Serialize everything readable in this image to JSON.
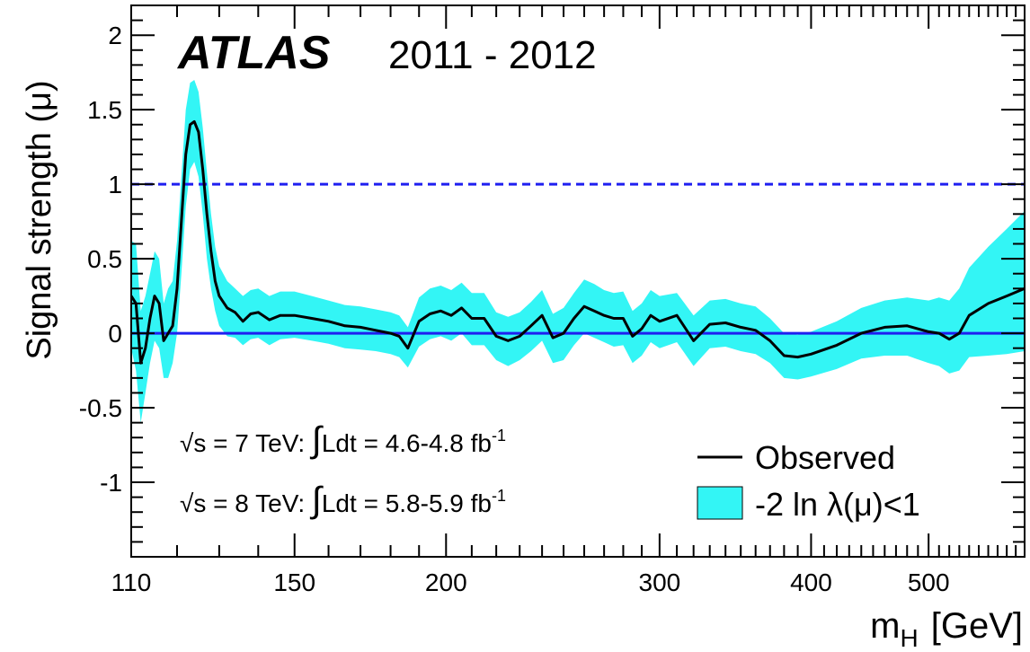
{
  "chart_data": {
    "type": "line",
    "title": "",
    "experiment_label": "ATLAS",
    "years_label": "2011 - 2012",
    "xlabel_main": "m",
    "xlabel_sub": "H",
    "xlabel_unit": "[GeV]",
    "ylabel": "Signal strength (μ)",
    "x_scale": "log",
    "xlim": [
      110,
      600
    ],
    "ylim": [
      -1.5,
      2.2
    ],
    "x_ticks": [
      110,
      150,
      200,
      300,
      400,
      500
    ],
    "y_ticks": [
      -1,
      -0.5,
      0,
      0.5,
      1,
      1.5,
      2
    ],
    "reference_lines": [
      {
        "y": 1,
        "style": "dashed",
        "color": "#1f1ff0"
      },
      {
        "y": 0,
        "style": "solid",
        "color": "#1f1ff0"
      }
    ],
    "annotations": [
      {
        "prefix": "√s = 7 TeV: ",
        "integral": "∫",
        "body": "Ldt = 4.6-4.8 fb",
        "sup": "-1"
      },
      {
        "prefix": "√s = 8 TeV: ",
        "integral": "∫",
        "body": "Ldt = 5.8-5.9 fb",
        "sup": "-1"
      }
    ],
    "legend": {
      "position": "bottom-right",
      "observed_label": "Observed",
      "band_label": "-2 ln λ(μ)<1"
    },
    "colors": {
      "observed": "#000000",
      "band": "#33f5f5",
      "reference": "#1f1ff0"
    },
    "series": [
      {
        "name": "Observed",
        "x": [
          110,
          111,
          112,
          113,
          114,
          115,
          116,
          117,
          118,
          119,
          120,
          121,
          122,
          123,
          124,
          125,
          126,
          127,
          128,
          129,
          130,
          132,
          134,
          136,
          138,
          140,
          143,
          146,
          150,
          155,
          160,
          165,
          170,
          175,
          180,
          183,
          186,
          190,
          194,
          198,
          202,
          206,
          210,
          215,
          220,
          225,
          230,
          235,
          240,
          245,
          250,
          255,
          260,
          265,
          270,
          275,
          280,
          285,
          290,
          295,
          300,
          310,
          320,
          330,
          340,
          350,
          360,
          370,
          380,
          390,
          400,
          420,
          440,
          460,
          480,
          500,
          510,
          520,
          530,
          540,
          560,
          580,
          600
        ],
        "y": [
          0.25,
          0.2,
          -0.2,
          -0.1,
          0.1,
          0.25,
          0.2,
          -0.05,
          0.0,
          0.05,
          0.3,
          0.75,
          1.2,
          1.4,
          1.42,
          1.35,
          1.1,
          0.8,
          0.55,
          0.35,
          0.25,
          0.17,
          0.14,
          0.08,
          0.13,
          0.14,
          0.09,
          0.12,
          0.12,
          0.1,
          0.08,
          0.05,
          0.04,
          0.02,
          0.0,
          -0.02,
          -0.1,
          0.08,
          0.13,
          0.15,
          0.12,
          0.17,
          0.1,
          0.1,
          -0.02,
          -0.05,
          -0.02,
          0.05,
          0.12,
          -0.03,
          0.0,
          0.1,
          0.18,
          0.15,
          0.12,
          0.1,
          0.1,
          -0.02,
          0.03,
          0.12,
          0.08,
          0.12,
          -0.05,
          0.06,
          0.07,
          0.04,
          0.02,
          -0.05,
          -0.15,
          -0.16,
          -0.14,
          -0.08,
          0.0,
          0.04,
          0.05,
          0.01,
          0.0,
          -0.04,
          0.0,
          0.12,
          0.2,
          0.25,
          0.3
        ]
      },
      {
        "name": "-2 ln λ(μ)<1",
        "x": [
          110,
          111,
          112,
          113,
          114,
          115,
          116,
          117,
          118,
          119,
          120,
          121,
          122,
          123,
          124,
          125,
          126,
          127,
          128,
          129,
          130,
          132,
          134,
          136,
          138,
          140,
          143,
          146,
          150,
          155,
          160,
          165,
          170,
          175,
          180,
          183,
          186,
          190,
          194,
          198,
          202,
          206,
          210,
          215,
          220,
          225,
          230,
          235,
          240,
          245,
          250,
          255,
          260,
          265,
          270,
          275,
          280,
          285,
          290,
          295,
          300,
          310,
          320,
          330,
          340,
          350,
          360,
          370,
          380,
          390,
          400,
          420,
          440,
          460,
          480,
          500,
          510,
          520,
          530,
          540,
          560,
          580,
          600
        ],
        "lower": [
          -0.1,
          -0.25,
          -0.6,
          -0.4,
          -0.2,
          -0.05,
          -0.1,
          -0.3,
          -0.3,
          -0.2,
          0.0,
          0.4,
          0.85,
          1.1,
          1.15,
          1.05,
          0.8,
          0.5,
          0.3,
          0.15,
          0.05,
          -0.02,
          -0.03,
          -0.08,
          -0.04,
          -0.03,
          -0.08,
          -0.04,
          -0.03,
          -0.05,
          -0.07,
          -0.1,
          -0.11,
          -0.12,
          -0.14,
          -0.16,
          -0.23,
          -0.09,
          -0.04,
          -0.02,
          -0.05,
          0.0,
          -0.08,
          -0.08,
          -0.18,
          -0.22,
          -0.18,
          -0.12,
          -0.05,
          -0.2,
          -0.18,
          -0.08,
          0.0,
          -0.03,
          -0.06,
          -0.09,
          -0.08,
          -0.2,
          -0.15,
          -0.06,
          -0.1,
          -0.06,
          -0.22,
          -0.1,
          -0.09,
          -0.12,
          -0.14,
          -0.2,
          -0.3,
          -0.31,
          -0.29,
          -0.24,
          -0.17,
          -0.15,
          -0.15,
          -0.2,
          -0.22,
          -0.27,
          -0.25,
          -0.16,
          -0.15,
          -0.14,
          -0.12
        ],
        "upper": [
          0.62,
          0.6,
          0.15,
          0.25,
          0.4,
          0.55,
          0.5,
          0.2,
          0.3,
          0.35,
          0.62,
          1.05,
          1.5,
          1.68,
          1.7,
          1.62,
          1.38,
          1.08,
          0.8,
          0.58,
          0.45,
          0.35,
          0.3,
          0.25,
          0.29,
          0.3,
          0.25,
          0.28,
          0.28,
          0.25,
          0.22,
          0.19,
          0.18,
          0.16,
          0.14,
          0.12,
          0.04,
          0.24,
          0.3,
          0.32,
          0.29,
          0.34,
          0.27,
          0.27,
          0.14,
          0.11,
          0.14,
          0.21,
          0.29,
          0.13,
          0.17,
          0.27,
          0.36,
          0.33,
          0.29,
          0.27,
          0.28,
          0.15,
          0.2,
          0.29,
          0.25,
          0.27,
          0.12,
          0.22,
          0.23,
          0.2,
          0.18,
          0.1,
          0.0,
          -0.01,
          0.01,
          0.08,
          0.17,
          0.22,
          0.24,
          0.22,
          0.24,
          0.22,
          0.3,
          0.44,
          0.58,
          0.7,
          0.82
        ]
      }
    ]
  }
}
